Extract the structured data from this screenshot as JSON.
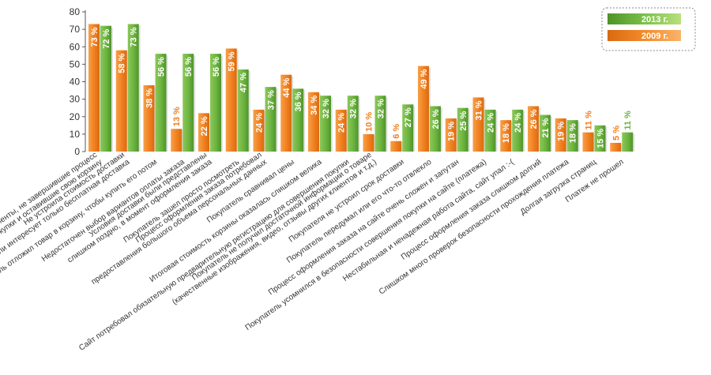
{
  "chart_data": {
    "type": "bar",
    "title": "",
    "xlabel": "",
    "ylabel": "",
    "ylim": [
      0,
      80
    ],
    "yticks": [
      0,
      10,
      20,
      30,
      40,
      50,
      60,
      70,
      80
    ],
    "grid": false,
    "legend_position": "top-right",
    "unit_suffix": " %",
    "colors": {
      "2009": "#f07f1e",
      "2013": "#6cb33f",
      "axis": "#555555",
      "legend_border": "#888888"
    },
    "categories": [
      "Клиенты, не завершившие процесс покупки и оставившие свою корзину",
      "Не устроила стоимость доставки или интересует только бесплатная доставка",
      "Покупатель отложил товар в корзину, чтобы купить его потом",
      "Недостаточен выбор вариантов оплаты заказа",
      "Условия доставки были представлены слишком поздно, в момент оформления заказа",
      "Покупатель зашел просто посмотреть",
      "Процесс оформления заказа потребовал предоставления большого объема персональных данных",
      "Покупатель сравнивал цены",
      "Итоговая стоимость корзины оказалась слишком велика",
      "Сайт потребовал обязательную предварительную регистрацию для совершения покупки",
      "Покупатель не получил достаточной информации о товаре (качественные изображения, видео, отзывы других клиентов и т.д.)",
      "Покупателя не устроил срок доставки",
      "Покупатель передумал или его что-то отвлекло",
      "Процесс оформления заказа на сайте очень сложен и запутан",
      "Покупатель усомнился в безопасности совершения покупки на сайте (платежа)",
      "Нестабильная и ненадежная работа сайта, сайт упал :-(",
      "Процесс оформления заказа слишком долгий",
      "Слишком много проверок безопасности прохождения платежа",
      "Долгая загрузка страниц",
      "Платеж не прошел"
    ],
    "category_lines": [
      [
        "Клиенты, не завершившие процесс",
        "покупки и оставившие свою корзину"
      ],
      [
        "Не устроила стоимость доставки",
        "или интересует только бесплатная доставка"
      ],
      [
        "Покупатель отложил товар в корзину, чтобы купить его потом"
      ],
      [
        "Недостаточен выбор вариантов оплаты заказа"
      ],
      [
        "Условия доставки были представлены",
        "слишком поздно, в момент оформления заказа"
      ],
      [
        "Покупатель зашел просто посмотреть"
      ],
      [
        "Процесс оформления заказа потребовал",
        "предоставления большого объема персональных данных"
      ],
      [
        "Покупатель сравнивал цены"
      ],
      [
        "Итоговая стоимость корзины оказалась слишком велика"
      ],
      [
        "Сайт потребовал обязательную предварительную регистрацию для совершения покупки"
      ],
      [
        "Покупатель не получил достаточной информации о товаре",
        "(качественные изображения, видео, отзывы других клиентов и т.д.)"
      ],
      [
        "Покупателя не устроил срок доставки"
      ],
      [
        "Покупатель передумал или его что-то отвлекло"
      ],
      [
        "Процесс оформления заказа на сайте очень сложен и запутан"
      ],
      [
        "Покупатель усомнился в безопасности совершения покупки на сайте (платежа)"
      ],
      [
        "Нестабильная и ненадежная работа сайта, сайт упал :-("
      ],
      [
        "Процесс оформления заказа слишком долгий"
      ],
      [
        "Слишком много проверок безопасности прохождения платежа"
      ],
      [
        "Долгая загрузка страниц"
      ],
      [
        "Платеж не прошел"
      ]
    ],
    "series": [
      {
        "name": "2009 г.",
        "key": "2009",
        "values": [
          73,
          58,
          38,
          13,
          22,
          59,
          24,
          44,
          34,
          24,
          10,
          6,
          49,
          19,
          31,
          18,
          26,
          19,
          11,
          5
        ]
      },
      {
        "name": "2013 г.",
        "key": "2013",
        "values": [
          72,
          73,
          56,
          56,
          56,
          47,
          37,
          36,
          32,
          32,
          32,
          27,
          26,
          25,
          24,
          24,
          21,
          18,
          15,
          11
        ]
      }
    ]
  }
}
